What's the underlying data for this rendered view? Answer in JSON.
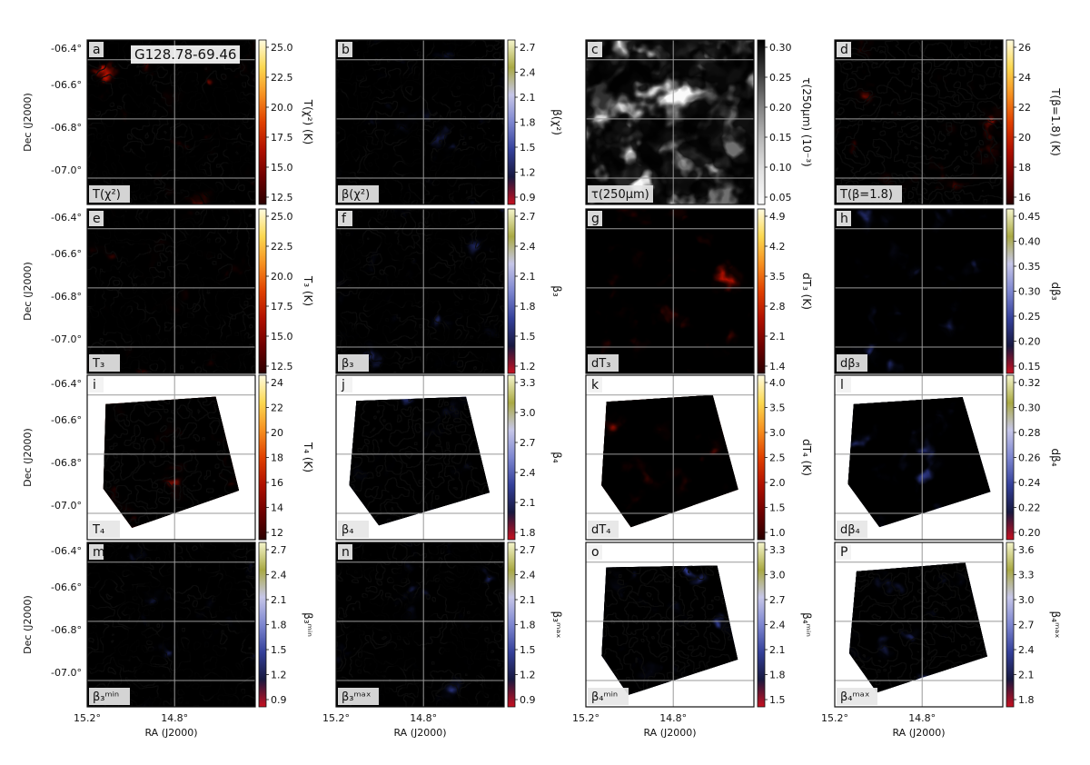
{
  "figure": {
    "title": "G128.78-69.46",
    "ra_ticks": [
      "15.2°",
      "14.8°"
    ],
    "dec_ticks": [
      "-06.4°",
      "-06.6°",
      "-06.8°",
      "-07.0°"
    ],
    "xlabel": "RA (J2000)",
    "ylabel": "Dec (J2000)"
  },
  "panels": [
    {
      "letter": "a",
      "param": "T(χ²)",
      "colormap": "hot",
      "cb_label": "T(χ²) (K)",
      "cb_ticks": [
        "25.0",
        "22.5",
        "20.0",
        "17.5",
        "15.0",
        "12.5"
      ],
      "footprint": "full",
      "contours": "dense",
      "has_title": true
    },
    {
      "letter": "b",
      "param": "β(χ²)",
      "colormap": "beta",
      "cb_label": "β(χ²)",
      "cb_ticks": [
        "2.7",
        "2.4",
        "2.1",
        "1.8",
        "1.5",
        "1.2",
        "0.9"
      ],
      "footprint": "full",
      "contours": "dense"
    },
    {
      "letter": "c",
      "param": "τ(250μm)",
      "colormap": "grey",
      "cb_label": "τ(250μm) (10⁻³)",
      "cb_ticks": [
        "0.30",
        "0.25",
        "0.20",
        "0.15",
        "0.10",
        "0.05"
      ],
      "footprint": "full",
      "contours": "none"
    },
    {
      "letter": "d",
      "param": "T(β=1.8)",
      "colormap": "hot",
      "cb_label": "T(β=1.8) (K)",
      "cb_ticks": [
        "26",
        "24",
        "22",
        "20",
        "18",
        "16"
      ],
      "footprint": "full",
      "contours": "medium"
    },
    {
      "letter": "e",
      "param": "T₃",
      "colormap": "hot",
      "cb_label": "T₃ (K)",
      "cb_ticks": [
        "25.0",
        "22.5",
        "20.0",
        "17.5",
        "15.0",
        "12.5"
      ],
      "footprint": "full",
      "contours": "dense"
    },
    {
      "letter": "f",
      "param": "β₃",
      "colormap": "beta",
      "cb_label": "β₃",
      "cb_ticks": [
        "2.7",
        "2.4",
        "2.1",
        "1.8",
        "1.5",
        "1.2"
      ],
      "footprint": "full",
      "contours": "dense"
    },
    {
      "letter": "g",
      "param": "dT₃",
      "colormap": "hot",
      "cb_label": "dT₃ (K)",
      "cb_ticks": [
        "4.9",
        "4.2",
        "3.5",
        "2.8",
        "2.1",
        "1.4"
      ],
      "footprint": "full",
      "contours": "none"
    },
    {
      "letter": "h",
      "param": "dβ₃",
      "colormap": "beta",
      "cb_label": "dβ₃",
      "cb_ticks": [
        "0.45",
        "0.40",
        "0.35",
        "0.30",
        "0.25",
        "0.20",
        "0.15"
      ],
      "footprint": "full",
      "contours": "none"
    },
    {
      "letter": "i",
      "param": "T₄",
      "colormap": "hot",
      "cb_label": "T₄ (K)",
      "cb_ticks": [
        "24",
        "22",
        "20",
        "18",
        "16",
        "14",
        "12"
      ],
      "footprint": "tilted",
      "contours": "dense"
    },
    {
      "letter": "j",
      "param": "β₄",
      "colormap": "beta",
      "cb_label": "β₄",
      "cb_ticks": [
        "3.3",
        "3.0",
        "2.7",
        "2.4",
        "2.1",
        "1.8"
      ],
      "footprint": "tilted",
      "contours": "dense"
    },
    {
      "letter": "k",
      "param": "dT₄",
      "colormap": "hot",
      "cb_label": "dT₄ (K)",
      "cb_ticks": [
        "4.0",
        "3.5",
        "3.0",
        "2.5",
        "2.0",
        "1.5",
        "1.0"
      ],
      "footprint": "tilted",
      "contours": "none"
    },
    {
      "letter": "l",
      "param": "dβ₄",
      "colormap": "beta",
      "cb_label": "dβ₄",
      "cb_ticks": [
        "0.32",
        "0.30",
        "0.28",
        "0.26",
        "0.24",
        "0.22",
        "0.20"
      ],
      "footprint": "tilted",
      "contours": "none"
    },
    {
      "letter": "m",
      "param": "β₃ᵐⁱⁿ",
      "colormap": "beta",
      "cb_label": "β₃ᵐⁱⁿ",
      "cb_ticks": [
        "2.7",
        "2.4",
        "2.1",
        "1.8",
        "1.5",
        "1.2",
        "0.9"
      ],
      "footprint": "full",
      "contours": "dense"
    },
    {
      "letter": "n",
      "param": "β₃ᵐᵃˣ",
      "colormap": "beta",
      "cb_label": "β₃ᵐᵃˣ",
      "cb_ticks": [
        "2.7",
        "2.4",
        "2.1",
        "1.8",
        "1.5",
        "1.2",
        "0.9"
      ],
      "footprint": "full",
      "contours": "dense"
    },
    {
      "letter": "o",
      "param": "β₄ᵐⁱⁿ",
      "colormap": "beta",
      "cb_label": "β₄ᵐⁱⁿ",
      "cb_ticks": [
        "3.3",
        "3.0",
        "2.7",
        "2.4",
        "2.1",
        "1.8",
        "1.5"
      ],
      "footprint": "tilted",
      "contours": "dense"
    },
    {
      "letter": "P",
      "param": "β₄ᵐᵃˣ",
      "colormap": "beta",
      "cb_label": "β₄ᵐᵃˣ",
      "cb_ticks": [
        "3.6",
        "3.3",
        "3.0",
        "2.7",
        "2.4",
        "2.1",
        "1.8"
      ],
      "footprint": "tilted",
      "contours": "dense"
    }
  ],
  "colors": {
    "hot": [
      "#2a0000",
      "#6e0000",
      "#b01000",
      "#e04000",
      "#f69020",
      "#fbd850",
      "#fffbe0"
    ],
    "beta": [
      "#c81020",
      "#17183f",
      "#34409a",
      "#7d86d0",
      "#c6c6e8",
      "#a9a943",
      "#f5f5cc"
    ],
    "grey": [
      "#fafafa",
      "#e2e2e2",
      "#b8b8b8",
      "#808080",
      "#3c3c3c",
      "#000000"
    ],
    "contour": "#111111",
    "grid": "#999999"
  }
}
